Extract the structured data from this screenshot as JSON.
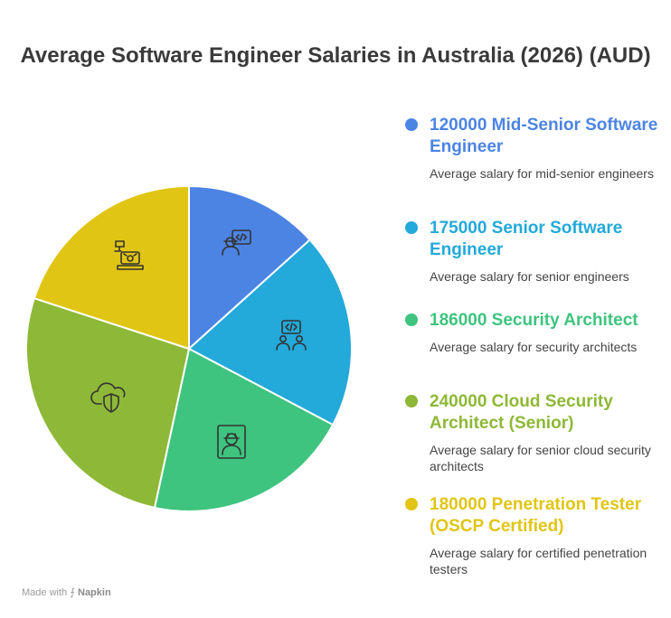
{
  "title": "Average Software Engineer Salaries in Australia (2026) (AUD)",
  "chart_data": {
    "type": "pie",
    "slices": [
      {
        "value": 120000,
        "label": "120000 Mid-Senior Software Engineer",
        "description": "Average salary for mid-senior engineers",
        "color": "#4C84E4",
        "icon": "code-engineer-icon"
      },
      {
        "value": 175000,
        "label": "175000 Senior Software Engineer",
        "description": "Average salary for senior engineers",
        "color": "#23A9DA",
        "icon": "team-code-icon"
      },
      {
        "value": 186000,
        "label": "186000 Security Architect",
        "description": "Average salary for security architects",
        "color": "#3EC47E",
        "icon": "architect-profile-icon"
      },
      {
        "value": 240000,
        "label": "240000 Cloud Security Architect (Senior)",
        "description": "Average salary for senior cloud security architects",
        "color": "#8EB837",
        "icon": "cloud-shield-icon"
      },
      {
        "value": 180000,
        "label": "180000 Penetration Tester (OSCP Certified)",
        "description": "Average salary for certified penetration testers",
        "color": "#E1C514",
        "icon": "pentest-laptop-icon"
      }
    ]
  },
  "footer": {
    "made_with": "Made with",
    "brand": "Napkin"
  }
}
